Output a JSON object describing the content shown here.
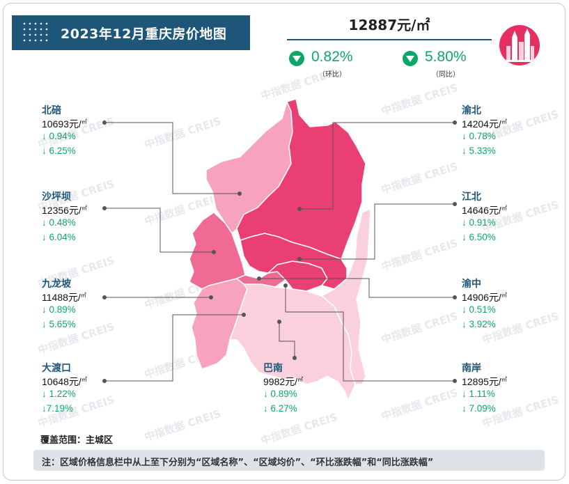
{
  "title": "2023年12月重庆房价地图",
  "summary": {
    "price": "12887元/㎡",
    "mom": {
      "value": "0.82%",
      "caption": "（环比）"
    },
    "yoy": {
      "value": "5.80%",
      "caption": "（同比）"
    }
  },
  "districts": [
    {
      "name": "北碚",
      "price": "10693",
      "unit": "元/",
      "unit_sup": "㎡",
      "mom": "↓ 0.94%",
      "yoy": "↓ 6.25%"
    },
    {
      "name": "沙坪坝",
      "price": "12356",
      "unit": "元/",
      "unit_sup": "㎡",
      "mom": "↓ 0.48%",
      "yoy": "↓ 6.04%"
    },
    {
      "name": "九龙坡",
      "price": "11488",
      "unit": "元/",
      "unit_sup": "㎡",
      "mom": "↓ 0.89%",
      "yoy": "↓ 5.65%"
    },
    {
      "name": "大渡口",
      "price": "10648",
      "unit": "元/",
      "unit_sup": "㎡",
      "mom": "↓ 1.22%",
      "yoy": "↓7.19%"
    },
    {
      "name": "巴南",
      "price": "9982",
      "unit": "元/",
      "unit_sup": "㎡",
      "mom": "↓ 0.89%",
      "yoy": "↓ 6.27%"
    },
    {
      "name": "南岸",
      "price": "12895",
      "unit": "元/",
      "unit_sup": "㎡",
      "mom": "↓ 1.11%",
      "yoy": "↓ 7.09%"
    },
    {
      "name": "渝中",
      "price": "14906",
      "unit": "元/",
      "unit_sup": "㎡",
      "mom": "↓ 0.51%",
      "yoy": "↓ 3.92%"
    },
    {
      "name": "江北",
      "price": "14646",
      "unit": "元/",
      "unit_sup": "㎡",
      "mom": "↓ 0.91%",
      "yoy": "↓ 6.50%"
    },
    {
      "name": "渝北",
      "price": "14204",
      "unit": "元/",
      "unit_sup": "㎡",
      "mom": "↓ 0.78%",
      "yoy": "↓ 5.33%"
    }
  ],
  "chart_data": {
    "type": "choropleth-map",
    "title": "2023年12月重庆房价地图",
    "overall": {
      "price_yuan_per_sqm": 12887,
      "mom_pct": -0.82,
      "yoy_pct": -5.8
    },
    "regions": [
      {
        "name": "北碚",
        "price": 10693,
        "mom_pct": -0.94,
        "yoy_pct": -6.25
      },
      {
        "name": "沙坪坝",
        "price": 12356,
        "mom_pct": -0.48,
        "yoy_pct": -6.04
      },
      {
        "name": "九龙坡",
        "price": 11488,
        "mom_pct": -0.89,
        "yoy_pct": -5.65
      },
      {
        "name": "大渡口",
        "price": 10648,
        "mom_pct": -1.22,
        "yoy_pct": -7.19
      },
      {
        "name": "巴南",
        "price": 9982,
        "mom_pct": -0.89,
        "yoy_pct": -6.27
      },
      {
        "name": "南岸",
        "price": 12895,
        "mom_pct": -1.11,
        "yoy_pct": -7.09
      },
      {
        "name": "渝中",
        "price": 14906,
        "mom_pct": -0.51,
        "yoy_pct": -3.92
      },
      {
        "name": "江北",
        "price": 14646,
        "mom_pct": -0.91,
        "yoy_pct": -6.5
      },
      {
        "name": "渝北",
        "price": 14204,
        "mom_pct": -0.78,
        "yoy_pct": -5.33
      }
    ],
    "colors": {
      "dark": "#ea3f72",
      "mid": "#f06b94",
      "light": "#f7a3bd",
      "pale": "#fbd0dd",
      "decline": "#0aa866",
      "header": "#1e5679"
    }
  },
  "coverage": "覆盖范围：主城区",
  "note": "注：区域价格信息栏中从上至下分别为“区域名称”、“区域均价”、“环比涨跌幅”和“同比涨跌幅”",
  "watermark": "中指数据 CREIS"
}
